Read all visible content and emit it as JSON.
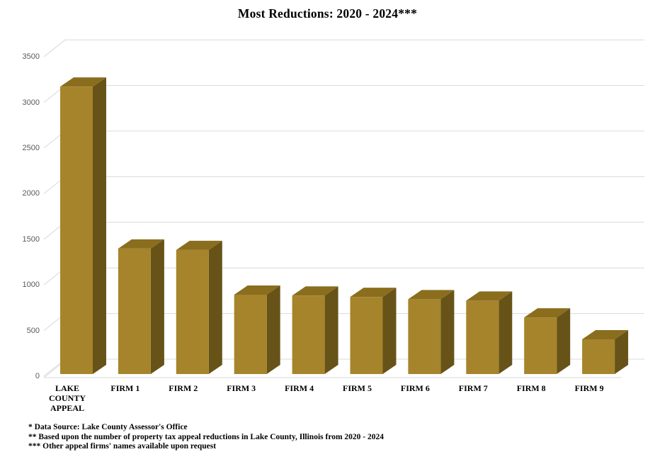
{
  "title": "Most Reductions: 2020 - 2024***",
  "chart_data": {
    "type": "bar",
    "style": "3d-column",
    "title": "Most Reductions: 2020 - 2024***",
    "categories": [
      "LAKE COUNTY APPEAL",
      "FIRM 1",
      "FIRM 2",
      "FIRM 3",
      "FIRM 4",
      "FIRM 5",
      "FIRM 6",
      "FIRM 7",
      "FIRM 8",
      "FIRM 9"
    ],
    "values": [
      3150,
      1375,
      1360,
      870,
      860,
      845,
      820,
      805,
      620,
      380
    ],
    "xlabel": "",
    "ylabel": "",
    "ylim": [
      0,
      3500
    ],
    "yticks": [
      0,
      500,
      1000,
      1500,
      2000,
      2500,
      3000,
      3500
    ],
    "grid": true,
    "legend": false,
    "colors": {
      "bar_front": "#A6842B",
      "bar_top": "#8A6E1E",
      "bar_side": "#675318",
      "gridline": "#D9D9D9",
      "axis_label": "#595959",
      "category_label": "#000000",
      "background": "#FFFFFF"
    }
  },
  "footnotes": [
    "* Data Source: Lake County Assessor's Office",
    "** Based upon the number of property tax appeal reductions in Lake County, Illinois from 2020 - 2024",
    "*** Other appeal firms' names available upon request"
  ]
}
